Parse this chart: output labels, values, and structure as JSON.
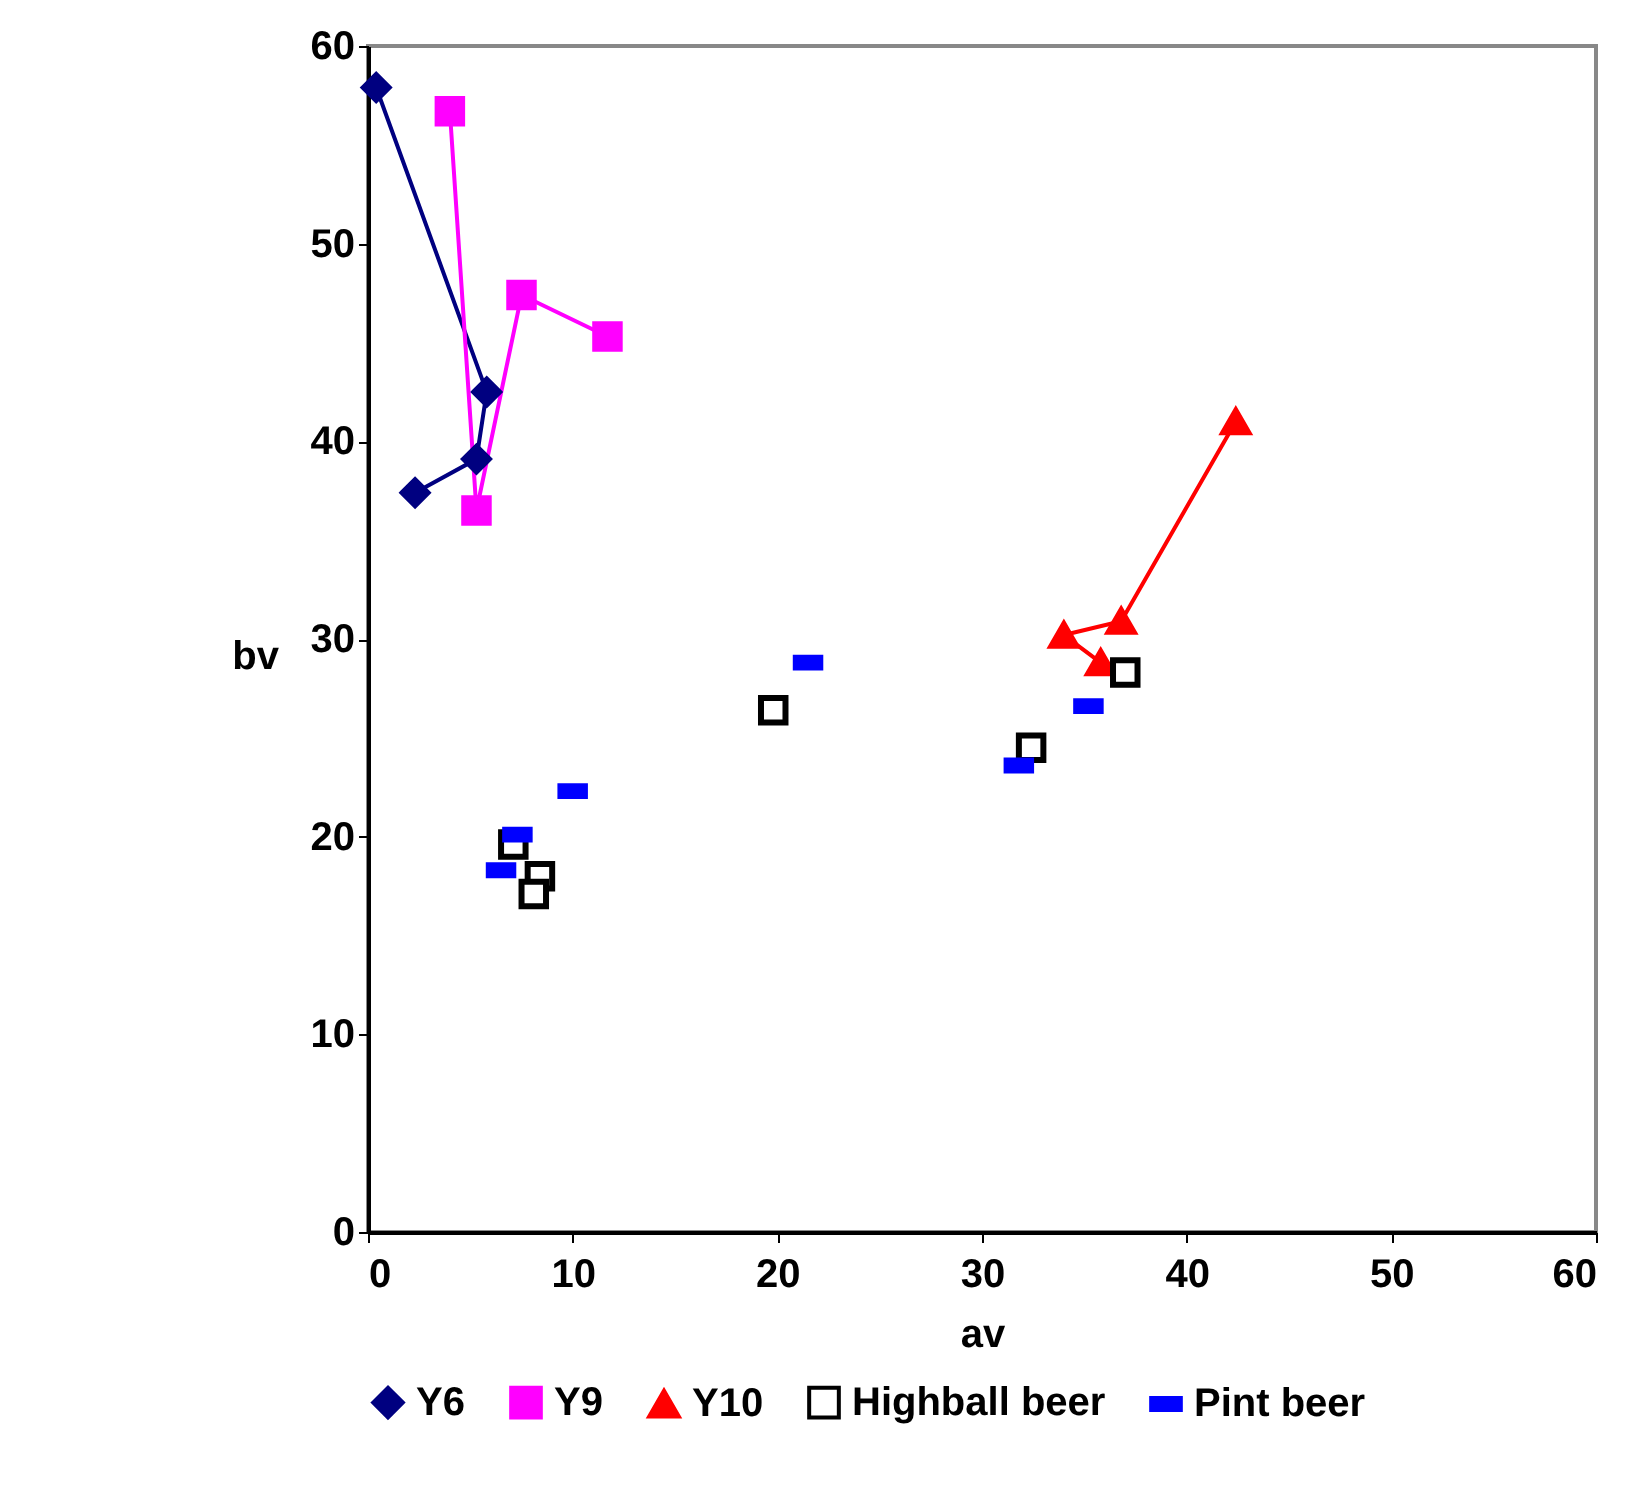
{
  "chart_data": {
    "type": "scatter",
    "xlabel": "av",
    "ylabel": "bv",
    "xlim": [
      0,
      60
    ],
    "ylim": [
      0,
      60
    ],
    "xticks": [
      0,
      10,
      20,
      30,
      40,
      50,
      60
    ],
    "yticks": [
      0,
      10,
      20,
      30,
      40,
      50,
      60
    ],
    "grid": false,
    "legend": "bottom",
    "series": [
      {
        "name": "Y6",
        "type": "line",
        "color": "#000080",
        "marker": "diamond",
        "x": [
          0.4,
          5.8,
          5.3,
          2.3
        ],
        "values": [
          57.9,
          42.5,
          39.1,
          37.4
        ]
      },
      {
        "name": "Y9",
        "type": "line",
        "color": "#ff00ff",
        "marker": "square",
        "x": [
          4.0,
          5.3,
          7.5,
          11.7
        ],
        "values": [
          56.7,
          36.5,
          47.4,
          45.3
        ]
      },
      {
        "name": "Y10",
        "type": "line",
        "color": "#ff0000",
        "marker": "triangle",
        "x": [
          35.8,
          34.0,
          36.8,
          42.4
        ],
        "values": [
          28.8,
          30.2,
          30.9,
          41.0
        ]
      },
      {
        "name": "Highball beer",
        "type": "scatter",
        "color": "#000000",
        "marker": "square",
        "x": [
          19.8,
          7.1,
          8.4,
          8.1,
          37.0,
          32.4
        ],
        "values": [
          26.4,
          19.6,
          18.0,
          17.1,
          28.3,
          24.5
        ]
      },
      {
        "name": "Pint beer",
        "type": "scatter",
        "color": "#0000ff",
        "x": [
          21.5,
          10.0,
          7.3,
          6.5,
          35.2,
          31.8
        ],
        "values": [
          28.8,
          22.3,
          20.1,
          18.3,
          26.6,
          23.6
        ]
      }
    ]
  }
}
